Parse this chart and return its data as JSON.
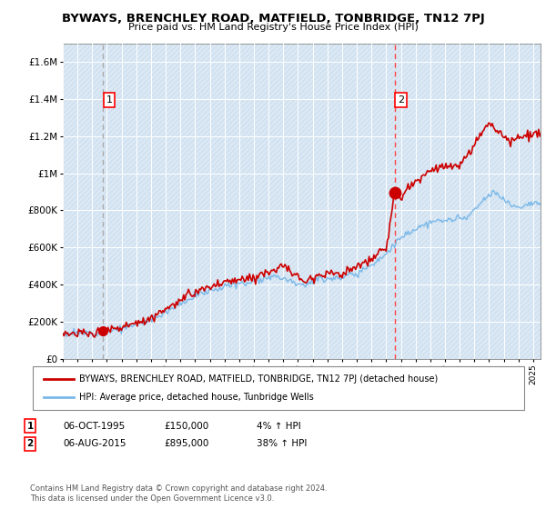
{
  "title": "BYWAYS, BRENCHLEY ROAD, MATFIELD, TONBRIDGE, TN12 7PJ",
  "subtitle": "Price paid vs. HM Land Registry's House Price Index (HPI)",
  "legend_line1": "BYWAYS, BRENCHLEY ROAD, MATFIELD, TONBRIDGE, TN12 7PJ (detached house)",
  "legend_line2": "HPI: Average price, detached house, Tunbridge Wells",
  "annotation1_date": "06-OCT-1995",
  "annotation1_price": "£150,000",
  "annotation1_hpi": "4% ↑ HPI",
  "annotation2_date": "06-AUG-2015",
  "annotation2_price": "£895,000",
  "annotation2_hpi": "38% ↑ HPI",
  "footnote": "Contains HM Land Registry data © Crown copyright and database right 2024.\nThis data is licensed under the Open Government Licence v3.0.",
  "sale1_year": 1995.75,
  "sale1_value": 150000,
  "sale2_year": 2015.58,
  "sale2_value": 895000,
  "hpi_color": "#7ab8e8",
  "price_color": "#cc0000",
  "dashed1_color": "#aaaaaa",
  "dashed2_color": "#ff4444",
  "plot_bg_color": "#dce9f5",
  "ylim_max": 1700000,
  "yticks": [
    0,
    200000,
    400000,
    600000,
    800000,
    1000000,
    1200000,
    1400000,
    1600000
  ],
  "ytick_labels": [
    "£0",
    "£200K",
    "£400K",
    "£600K",
    "£800K",
    "£1M",
    "£1.2M",
    "£1.4M",
    "£1.6M"
  ],
  "xmin": 1993,
  "xmax": 2025.5
}
